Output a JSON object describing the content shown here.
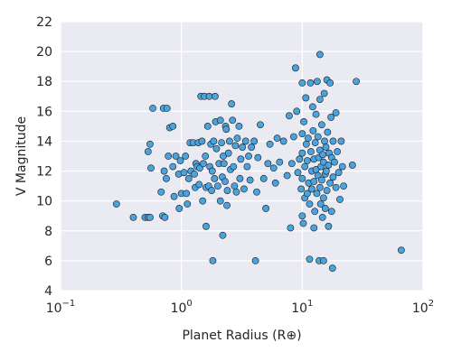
{
  "chart_data": {
    "type": "scatter",
    "title": "",
    "xlabel": "Planet Radius (R⊕)",
    "ylabel": "V Magnitude",
    "xscale": "log",
    "xlim": [
      0.1,
      100
    ],
    "ylim": [
      4,
      22
    ],
    "grid": true,
    "legend": "none",
    "x_tick_labels": [
      {
        "value": 0.1,
        "base": "10",
        "exp": "−1"
      },
      {
        "value": 1,
        "base": "10",
        "exp": "0"
      },
      {
        "value": 10,
        "base": "10",
        "exp": "1"
      },
      {
        "value": 100,
        "base": "10",
        "exp": "2"
      }
    ],
    "y_ticks": [
      4,
      6,
      8,
      10,
      12,
      14,
      16,
      18,
      20,
      22
    ],
    "marker_color": "#4aa3df",
    "marker_edge_color": "#1a1a1a",
    "background_color": "#eaeaf2",
    "points": [
      [
        0.29,
        9.8
      ],
      [
        0.4,
        8.9
      ],
      [
        0.5,
        8.9
      ],
      [
        0.53,
        8.9
      ],
      [
        0.55,
        8.9
      ],
      [
        0.56,
        12.2
      ],
      [
        0.53,
        13.3
      ],
      [
        0.55,
        13.8
      ],
      [
        0.58,
        16.2
      ],
      [
        0.68,
        10.6
      ],
      [
        0.7,
        9.0
      ],
      [
        0.73,
        8.9
      ],
      [
        0.71,
        16.2
      ],
      [
        0.76,
        16.2
      ],
      [
        0.72,
        12.0
      ],
      [
        0.75,
        11.5
      ],
      [
        0.78,
        13.0
      ],
      [
        0.8,
        14.9
      ],
      [
        0.85,
        12.3
      ],
      [
        0.85,
        15.0
      ],
      [
        0.9,
        13.0
      ],
      [
        0.87,
        10.3
      ],
      [
        0.95,
        11.8
      ],
      [
        0.98,
        12.7
      ],
      [
        1.0,
        10.5
      ],
      [
        0.96,
        9.5
      ],
      [
        1.05,
        11.9
      ],
      [
        1.08,
        13.0
      ],
      [
        1.1,
        10.5
      ],
      [
        1.12,
        9.8
      ],
      [
        1.15,
        11.5
      ],
      [
        1.18,
        13.9
      ],
      [
        1.2,
        12.0
      ],
      [
        1.25,
        13.9
      ],
      [
        1.28,
        11.8
      ],
      [
        1.3,
        10.9
      ],
      [
        1.32,
        12.5
      ],
      [
        1.35,
        12.3
      ],
      [
        1.38,
        13.9
      ],
      [
        1.4,
        11.1
      ],
      [
        1.42,
        12.2
      ],
      [
        1.45,
        17.0
      ],
      [
        1.48,
        14.0
      ],
      [
        1.5,
        10.0
      ],
      [
        1.52,
        12.5
      ],
      [
        1.55,
        17.0
      ],
      [
        1.58,
        13.0
      ],
      [
        1.6,
        10.9
      ],
      [
        1.6,
        8.3
      ],
      [
        1.65,
        15.0
      ],
      [
        1.68,
        11.0
      ],
      [
        1.7,
        17.0
      ],
      [
        1.72,
        12.3
      ],
      [
        1.75,
        13.8
      ],
      [
        1.78,
        10.7
      ],
      [
        1.8,
        12.0
      ],
      [
        1.82,
        6.0
      ],
      [
        1.85,
        14.0
      ],
      [
        1.88,
        11.5
      ],
      [
        1.9,
        17.0
      ],
      [
        1.92,
        15.3
      ],
      [
        1.95,
        13.5
      ],
      [
        2.0,
        11.0
      ],
      [
        2.05,
        12.5
      ],
      [
        2.1,
        10.0
      ],
      [
        2.1,
        15.4
      ],
      [
        2.15,
        13.9
      ],
      [
        2.18,
        11.6
      ],
      [
        2.2,
        7.7
      ],
      [
        2.22,
        13.0
      ],
      [
        2.25,
        12.5
      ],
      [
        2.3,
        11.3
      ],
      [
        2.32,
        15.0
      ],
      [
        2.35,
        14.8
      ],
      [
        2.38,
        9.7
      ],
      [
        2.4,
        10.7
      ],
      [
        2.45,
        13.2
      ],
      [
        2.5,
        14.0
      ],
      [
        2.55,
        12.1
      ],
      [
        2.6,
        16.5
      ],
      [
        2.65,
        15.4
      ],
      [
        2.7,
        12.3
      ],
      [
        2.75,
        11.0
      ],
      [
        2.8,
        13.7
      ],
      [
        2.85,
        10.6
      ],
      [
        2.9,
        14.2
      ],
      [
        3.0,
        15.0
      ],
      [
        3.05,
        11.5
      ],
      [
        3.1,
        12.8
      ],
      [
        3.2,
        13.6
      ],
      [
        3.3,
        10.8
      ],
      [
        3.4,
        14.0
      ],
      [
        3.5,
        12.3
      ],
      [
        3.6,
        13.0
      ],
      [
        3.7,
        11.4
      ],
      [
        3.8,
        13.6
      ],
      [
        4.0,
        14.0
      ],
      [
        4.1,
        6.0
      ],
      [
        4.2,
        10.6
      ],
      [
        4.3,
        12.9
      ],
      [
        4.5,
        15.1
      ],
      [
        4.8,
        11.5
      ],
      [
        5.0,
        9.5
      ],
      [
        5.2,
        12.5
      ],
      [
        5.4,
        13.8
      ],
      [
        5.8,
        12.2
      ],
      [
        6.0,
        11.2
      ],
      [
        6.2,
        14.2
      ],
      [
        6.5,
        12.6
      ],
      [
        7.0,
        14.0
      ],
      [
        7.5,
        11.7
      ],
      [
        7.8,
        15.7
      ],
      [
        8.0,
        8.2
      ],
      [
        8.2,
        12.5
      ],
      [
        8.5,
        14.3
      ],
      [
        8.8,
        18.9
      ],
      [
        9.0,
        16.0
      ],
      [
        9.2,
        11.9
      ],
      [
        9.5,
        12.8
      ],
      [
        9.8,
        10.8
      ],
      [
        10.0,
        17.9
      ],
      [
        10.0,
        14.5
      ],
      [
        10.0,
        13.2
      ],
      [
        10.0,
        11.5
      ],
      [
        10.0,
        9.0
      ],
      [
        10.2,
        8.5
      ],
      [
        10.3,
        15.3
      ],
      [
        10.5,
        12.3
      ],
      [
        10.5,
        10.2
      ],
      [
        10.7,
        16.9
      ],
      [
        10.8,
        13.8
      ],
      [
        11.0,
        12.7
      ],
      [
        11.0,
        10.5
      ],
      [
        11.2,
        14.2
      ],
      [
        11.3,
        11.2
      ],
      [
        11.5,
        9.8
      ],
      [
        11.5,
        6.1
      ],
      [
        11.7,
        17.9
      ],
      [
        11.8,
        13.3
      ],
      [
        12.0,
        12.0
      ],
      [
        12.0,
        10.8
      ],
      [
        12.2,
        16.3
      ],
      [
        12.3,
        14.7
      ],
      [
        12.5,
        12.8
      ],
      [
        12.5,
        11.3
      ],
      [
        12.5,
        8.2
      ],
      [
        12.7,
        9.3
      ],
      [
        12.8,
        13.9
      ],
      [
        13.0,
        15.8
      ],
      [
        13.0,
        12.1
      ],
      [
        13.2,
        10.5
      ],
      [
        13.3,
        18.0
      ],
      [
        13.5,
        14.3
      ],
      [
        13.5,
        11.7
      ],
      [
        13.7,
        12.9
      ],
      [
        13.8,
        6.0
      ],
      [
        14.0,
        19.8
      ],
      [
        14.0,
        16.8
      ],
      [
        14.0,
        13.4
      ],
      [
        14.0,
        10.9
      ],
      [
        14.2,
        9.8
      ],
      [
        14.3,
        12.3
      ],
      [
        14.5,
        15.1
      ],
      [
        14.5,
        11.4
      ],
      [
        14.7,
        8.9
      ],
      [
        14.8,
        13.1
      ],
      [
        15.0,
        12.6
      ],
      [
        15.0,
        10.2
      ],
      [
        15.0,
        6.0
      ],
      [
        15.2,
        17.2
      ],
      [
        15.3,
        14.0
      ],
      [
        15.5,
        11.8
      ],
      [
        15.5,
        9.5
      ],
      [
        15.7,
        13.6
      ],
      [
        15.8,
        12.0
      ],
      [
        16.0,
        18.1
      ],
      [
        16.0,
        10.7
      ],
      [
        16.2,
        14.6
      ],
      [
        16.5,
        12.4
      ],
      [
        16.5,
        8.3
      ],
      [
        16.7,
        13.2
      ],
      [
        17.0,
        11.2
      ],
      [
        17.0,
        17.9
      ],
      [
        17.3,
        15.6
      ],
      [
        17.5,
        12.9
      ],
      [
        17.5,
        9.3
      ],
      [
        17.8,
        5.5
      ],
      [
        18.0,
        14.0
      ],
      [
        18.0,
        11.6
      ],
      [
        18.5,
        12.6
      ],
      [
        19.0,
        10.9
      ],
      [
        19.0,
        15.9
      ],
      [
        19.5,
        13.3
      ],
      [
        20.0,
        11.9
      ],
      [
        20.5,
        10.1
      ],
      [
        21.0,
        14.0
      ],
      [
        21.5,
        12.3
      ],
      [
        22.0,
        11.0
      ],
      [
        26.0,
        12.4
      ],
      [
        28.0,
        18.0
      ],
      [
        66.0,
        6.7
      ]
    ]
  }
}
